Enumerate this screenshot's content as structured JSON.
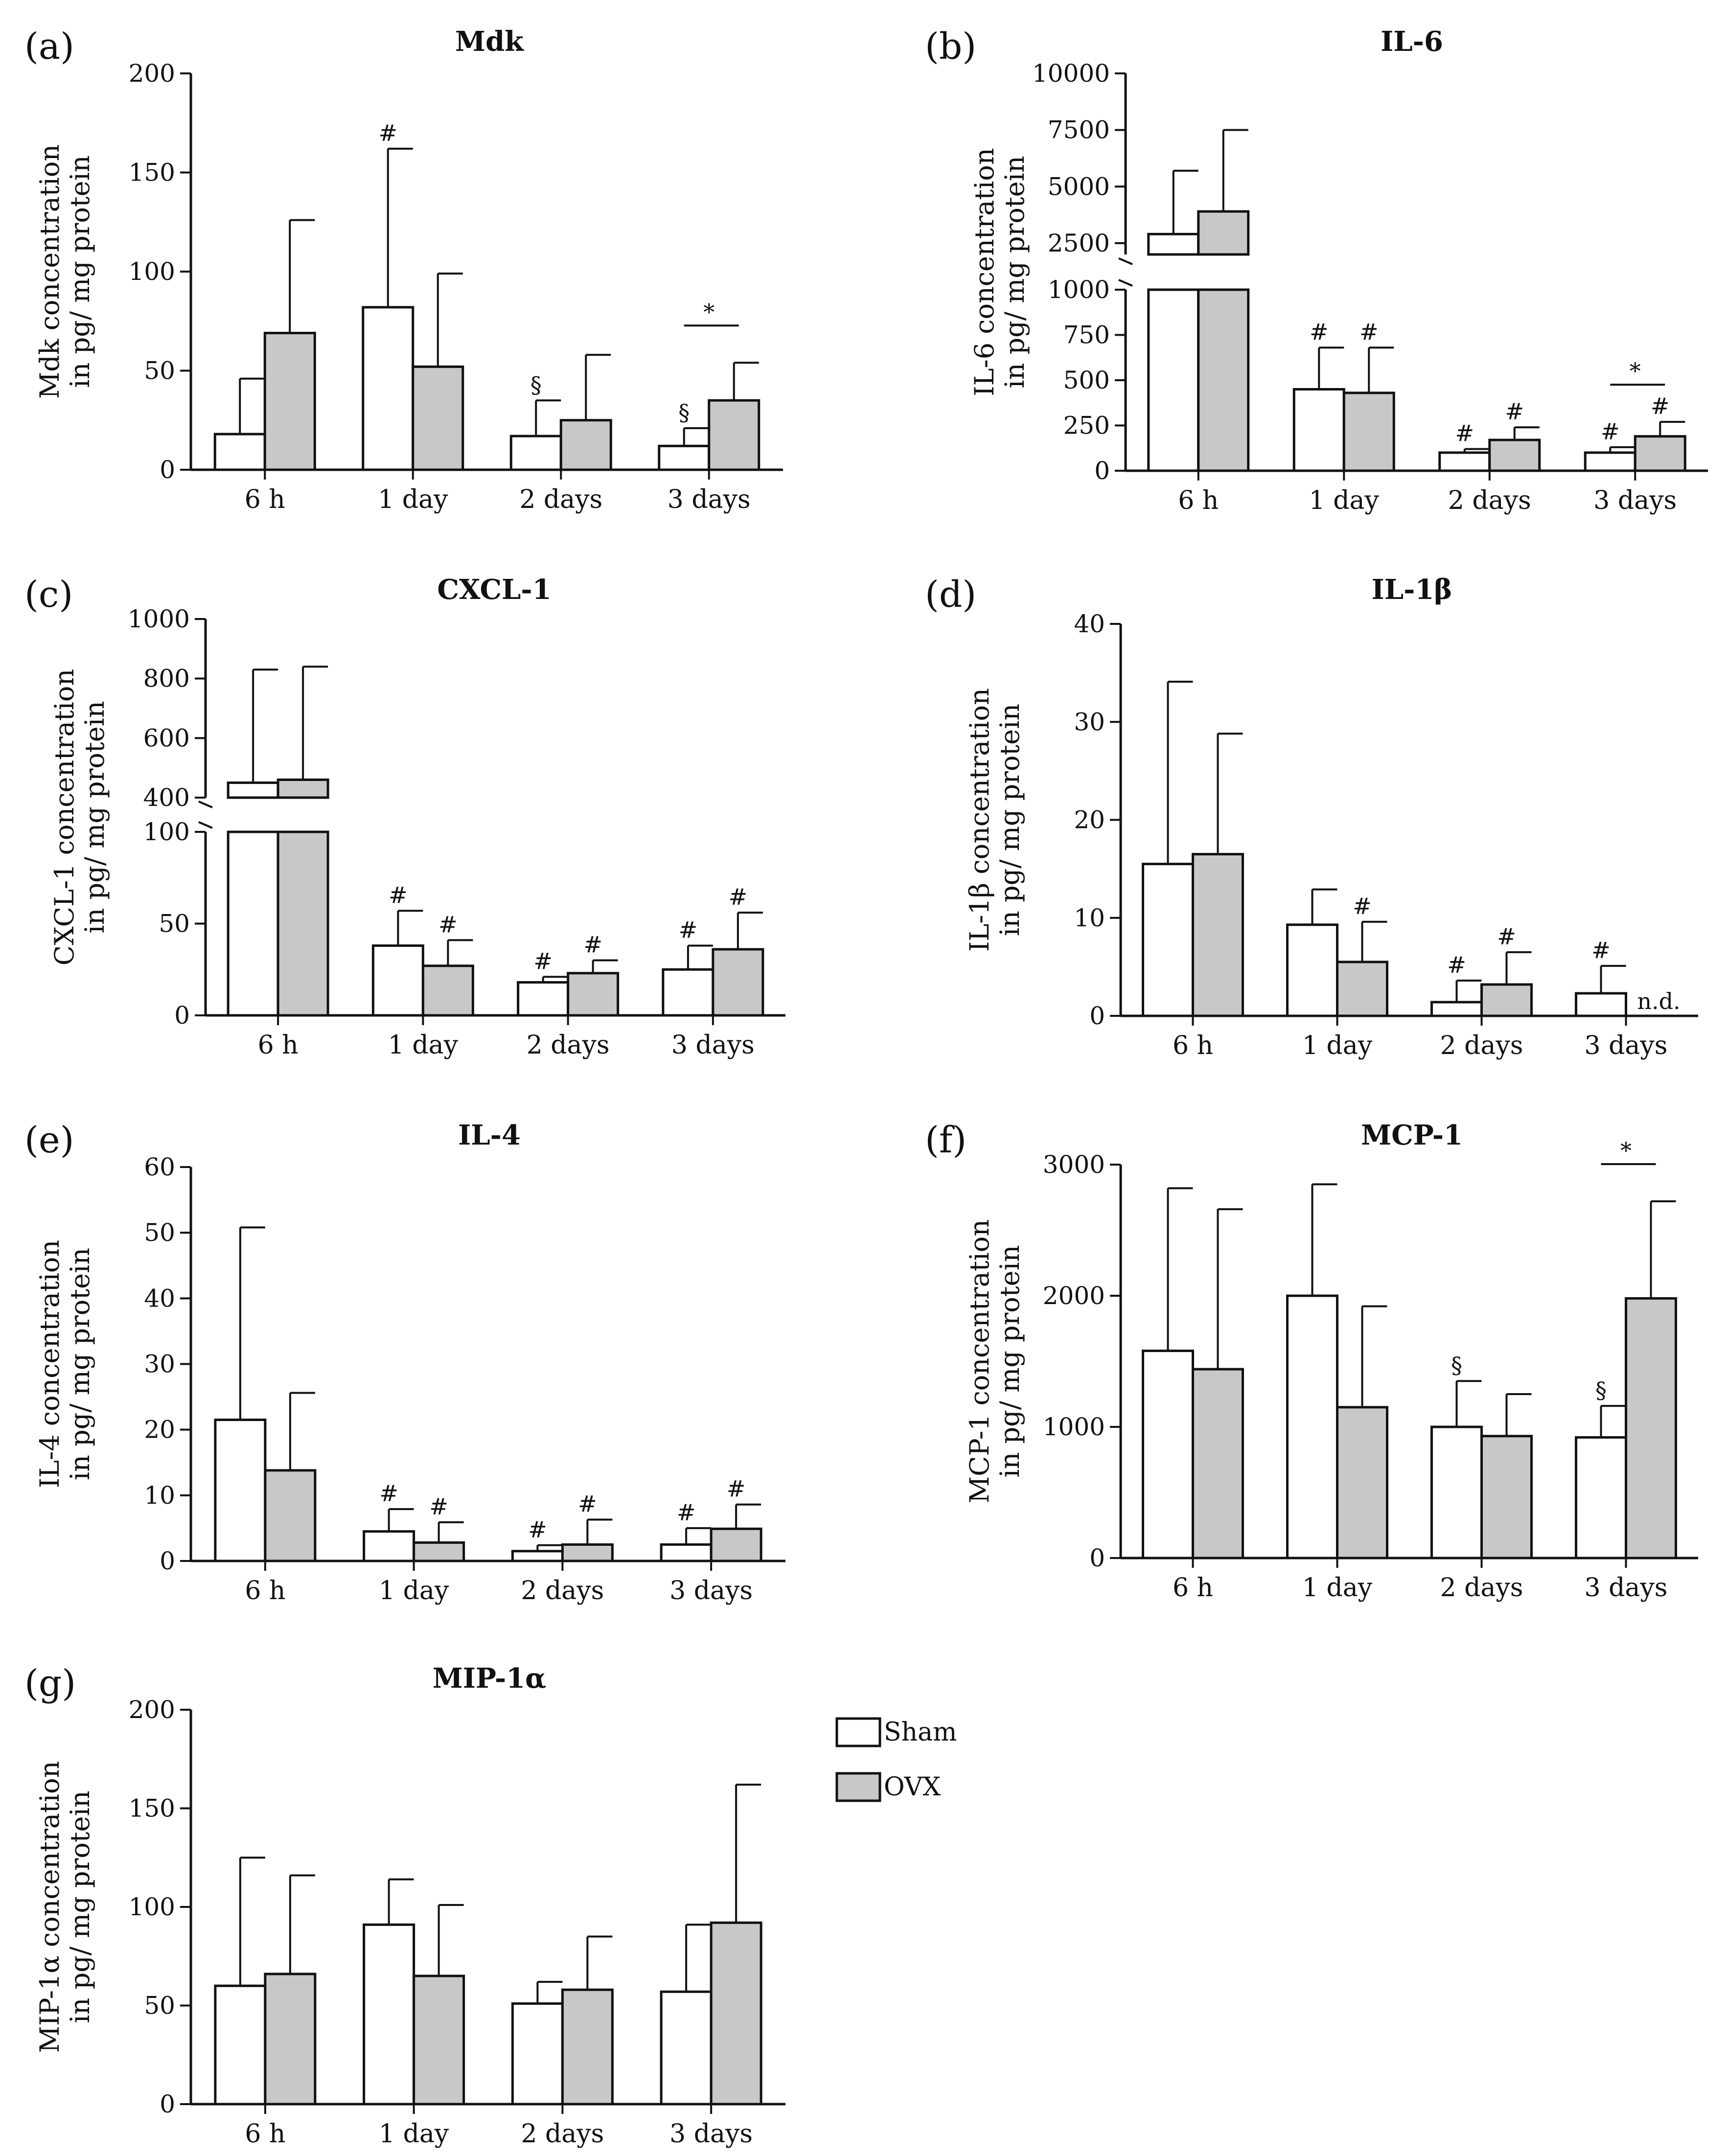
{
  "legend": [
    {
      "label": "Sham",
      "color": "#ffffff"
    },
    {
      "label": "OVX",
      "color": "#c8c8c8"
    }
  ],
  "colors": {
    "sham": "#ffffff",
    "ovx": "#c8c8c8",
    "stroke": "#111111"
  },
  "chart_data": [
    {
      "id": "a",
      "letter": "(a)",
      "title": "Mdk",
      "type": "bar",
      "ylabel_lines": [
        "Mdk concentration",
        "in pg/ mg protein"
      ],
      "categories": [
        "6 h",
        "1 day",
        "2 days",
        "3 days"
      ],
      "ylim": [
        0,
        200
      ],
      "yticks": [
        0,
        50,
        100,
        150,
        200
      ],
      "series": [
        {
          "name": "Sham",
          "values": [
            18,
            82,
            17,
            12
          ],
          "errors": [
            46,
            162,
            35,
            21
          ]
        },
        {
          "name": "OVX",
          "values": [
            69,
            52,
            25,
            35
          ],
          "errors": [
            126,
            99,
            58,
            54
          ]
        }
      ],
      "annotations": [
        {
          "cat": 1,
          "series": 0,
          "text": "#"
        },
        {
          "cat": 2,
          "series": 0,
          "text": "§"
        },
        {
          "cat": 3,
          "series": 0,
          "text": "§"
        }
      ],
      "brackets": [
        {
          "cat": 3,
          "text": "*"
        }
      ]
    },
    {
      "id": "b",
      "letter": "(b)",
      "title": "IL-6",
      "type": "bar",
      "ylabel_lines": [
        "IL-6 concentration",
        "in pg/ mg protein"
      ],
      "categories": [
        "6 h",
        "1 day",
        "2 days",
        "3 days"
      ],
      "ylim": [
        0,
        10000
      ],
      "yticks": [
        0,
        250,
        500,
        750,
        1000,
        2500,
        5000,
        7500,
        10000
      ],
      "axis_break": {
        "lower_max": 1000,
        "upper_min": 2000
      },
      "series": [
        {
          "name": "Sham",
          "values": [
            2900,
            450,
            100,
            100
          ],
          "errors": [
            5700,
            680,
            120,
            130
          ]
        },
        {
          "name": "OVX",
          "values": [
            3900,
            430,
            170,
            190
          ],
          "errors": [
            7500,
            680,
            240,
            270
          ]
        }
      ],
      "annotations": [
        {
          "cat": 1,
          "series": 0,
          "text": "#"
        },
        {
          "cat": 1,
          "series": 1,
          "text": "#"
        },
        {
          "cat": 2,
          "series": 0,
          "text": "#"
        },
        {
          "cat": 2,
          "series": 1,
          "text": "#"
        },
        {
          "cat": 3,
          "series": 0,
          "text": "#"
        },
        {
          "cat": 3,
          "series": 1,
          "text": "#"
        }
      ],
      "brackets": [
        {
          "cat": 3,
          "text": "*"
        }
      ]
    },
    {
      "id": "c",
      "letter": "(c)",
      "title": "CXCL-1",
      "type": "bar",
      "ylabel_lines": [
        "CXCL-1 concentration",
        "in pg/ mg protein"
      ],
      "categories": [
        "6 h",
        "1 day",
        "2 days",
        "3 days"
      ],
      "ylim": [
        0,
        1000
      ],
      "yticks": [
        0,
        50,
        100,
        400,
        600,
        800,
        1000
      ],
      "axis_break": {
        "lower_max": 100,
        "upper_min": 400
      },
      "series": [
        {
          "name": "Sham",
          "values": [
            450,
            38,
            18,
            25
          ],
          "errors": [
            830,
            57,
            21,
            38
          ]
        },
        {
          "name": "OVX",
          "values": [
            460,
            27,
            23,
            36
          ],
          "errors": [
            840,
            41,
            30,
            56
          ]
        }
      ],
      "annotations": [
        {
          "cat": 1,
          "series": 0,
          "text": "#"
        },
        {
          "cat": 1,
          "series": 1,
          "text": "#"
        },
        {
          "cat": 2,
          "series": 0,
          "text": "#"
        },
        {
          "cat": 2,
          "series": 1,
          "text": "#"
        },
        {
          "cat": 3,
          "series": 0,
          "text": "#"
        },
        {
          "cat": 3,
          "series": 1,
          "text": "#"
        }
      ],
      "brackets": []
    },
    {
      "id": "d",
      "letter": "(d)",
      "title": "IL-1β",
      "type": "bar",
      "ylabel_lines": [
        "IL-1β concentration",
        "in pg/ mg protein"
      ],
      "categories": [
        "6 h",
        "1 day",
        "2 days",
        "3 days"
      ],
      "ylim": [
        0,
        40
      ],
      "yticks": [
        0,
        10,
        20,
        30,
        40
      ],
      "series": [
        {
          "name": "Sham",
          "values": [
            15.5,
            9.3,
            1.4,
            2.3
          ],
          "errors": [
            34.1,
            12.9,
            3.6,
            5.1
          ]
        },
        {
          "name": "OVX",
          "values": [
            16.5,
            5.5,
            3.2,
            null
          ],
          "errors": [
            28.8,
            9.6,
            6.5,
            null
          ]
        }
      ],
      "annotations": [
        {
          "cat": 1,
          "series": 1,
          "text": "#"
        },
        {
          "cat": 2,
          "series": 0,
          "text": "#"
        },
        {
          "cat": 2,
          "series": 1,
          "text": "#"
        },
        {
          "cat": 3,
          "series": 0,
          "text": "#"
        },
        {
          "cat": 3,
          "series": 1,
          "text": "n.d.",
          "at_base": true
        }
      ],
      "brackets": []
    },
    {
      "id": "e",
      "letter": "(e)",
      "title": "IL-4",
      "type": "bar",
      "ylabel_lines": [
        "IL-4 concentration",
        "in pg/ mg protein"
      ],
      "categories": [
        "6 h",
        "1 day",
        "2 days",
        "3 days"
      ],
      "ylim": [
        0,
        60
      ],
      "yticks": [
        0,
        10,
        20,
        30,
        40,
        50,
        60
      ],
      "series": [
        {
          "name": "Sham",
          "values": [
            21.5,
            4.5,
            1.5,
            2.5
          ],
          "errors": [
            50.8,
            7.9,
            2.4,
            5.0
          ]
        },
        {
          "name": "OVX",
          "values": [
            13.8,
            2.8,
            2.5,
            4.9
          ],
          "errors": [
            25.6,
            5.9,
            6.3,
            8.6
          ]
        }
      ],
      "annotations": [
        {
          "cat": 1,
          "series": 0,
          "text": "#"
        },
        {
          "cat": 1,
          "series": 1,
          "text": "#"
        },
        {
          "cat": 2,
          "series": 0,
          "text": "#"
        },
        {
          "cat": 2,
          "series": 1,
          "text": "#"
        },
        {
          "cat": 3,
          "series": 0,
          "text": "#"
        },
        {
          "cat": 3,
          "series": 1,
          "text": "#"
        }
      ],
      "brackets": []
    },
    {
      "id": "f",
      "letter": "(f)",
      "title": "MCP-1",
      "type": "bar",
      "ylabel_lines": [
        "MCP-1 concentration",
        "in pg/ mg protein"
      ],
      "categories": [
        "6 h",
        "1 day",
        "2 days",
        "3 days"
      ],
      "ylim": [
        0,
        3000
      ],
      "yticks": [
        0,
        1000,
        2000,
        3000
      ],
      "series": [
        {
          "name": "Sham",
          "values": [
            1580,
            2000,
            1000,
            920
          ],
          "errors": [
            2820,
            2850,
            1350,
            1160
          ]
        },
        {
          "name": "OVX",
          "values": [
            1440,
            1150,
            930,
            1980
          ],
          "errors": [
            2660,
            1920,
            1250,
            2720
          ]
        }
      ],
      "annotations": [
        {
          "cat": 2,
          "series": 0,
          "text": "§"
        },
        {
          "cat": 3,
          "series": 0,
          "text": "§"
        }
      ],
      "brackets": [
        {
          "cat": 3,
          "text": "*"
        }
      ]
    },
    {
      "id": "g",
      "letter": "(g)",
      "title": "MIP-1α",
      "type": "bar",
      "ylabel_lines": [
        "MIP-1α concentration",
        "in pg/ mg protein"
      ],
      "categories": [
        "6 h",
        "1 day",
        "2 days",
        "3 days"
      ],
      "ylim": [
        0,
        200
      ],
      "yticks": [
        0,
        50,
        100,
        150,
        200
      ],
      "series": [
        {
          "name": "Sham",
          "values": [
            60,
            91,
            51,
            57
          ],
          "errors": [
            125,
            114,
            62,
            91
          ]
        },
        {
          "name": "OVX",
          "values": [
            66,
            65,
            58,
            92
          ],
          "errors": [
            116,
            101,
            85,
            162
          ]
        }
      ],
      "annotations": [],
      "brackets": []
    }
  ]
}
